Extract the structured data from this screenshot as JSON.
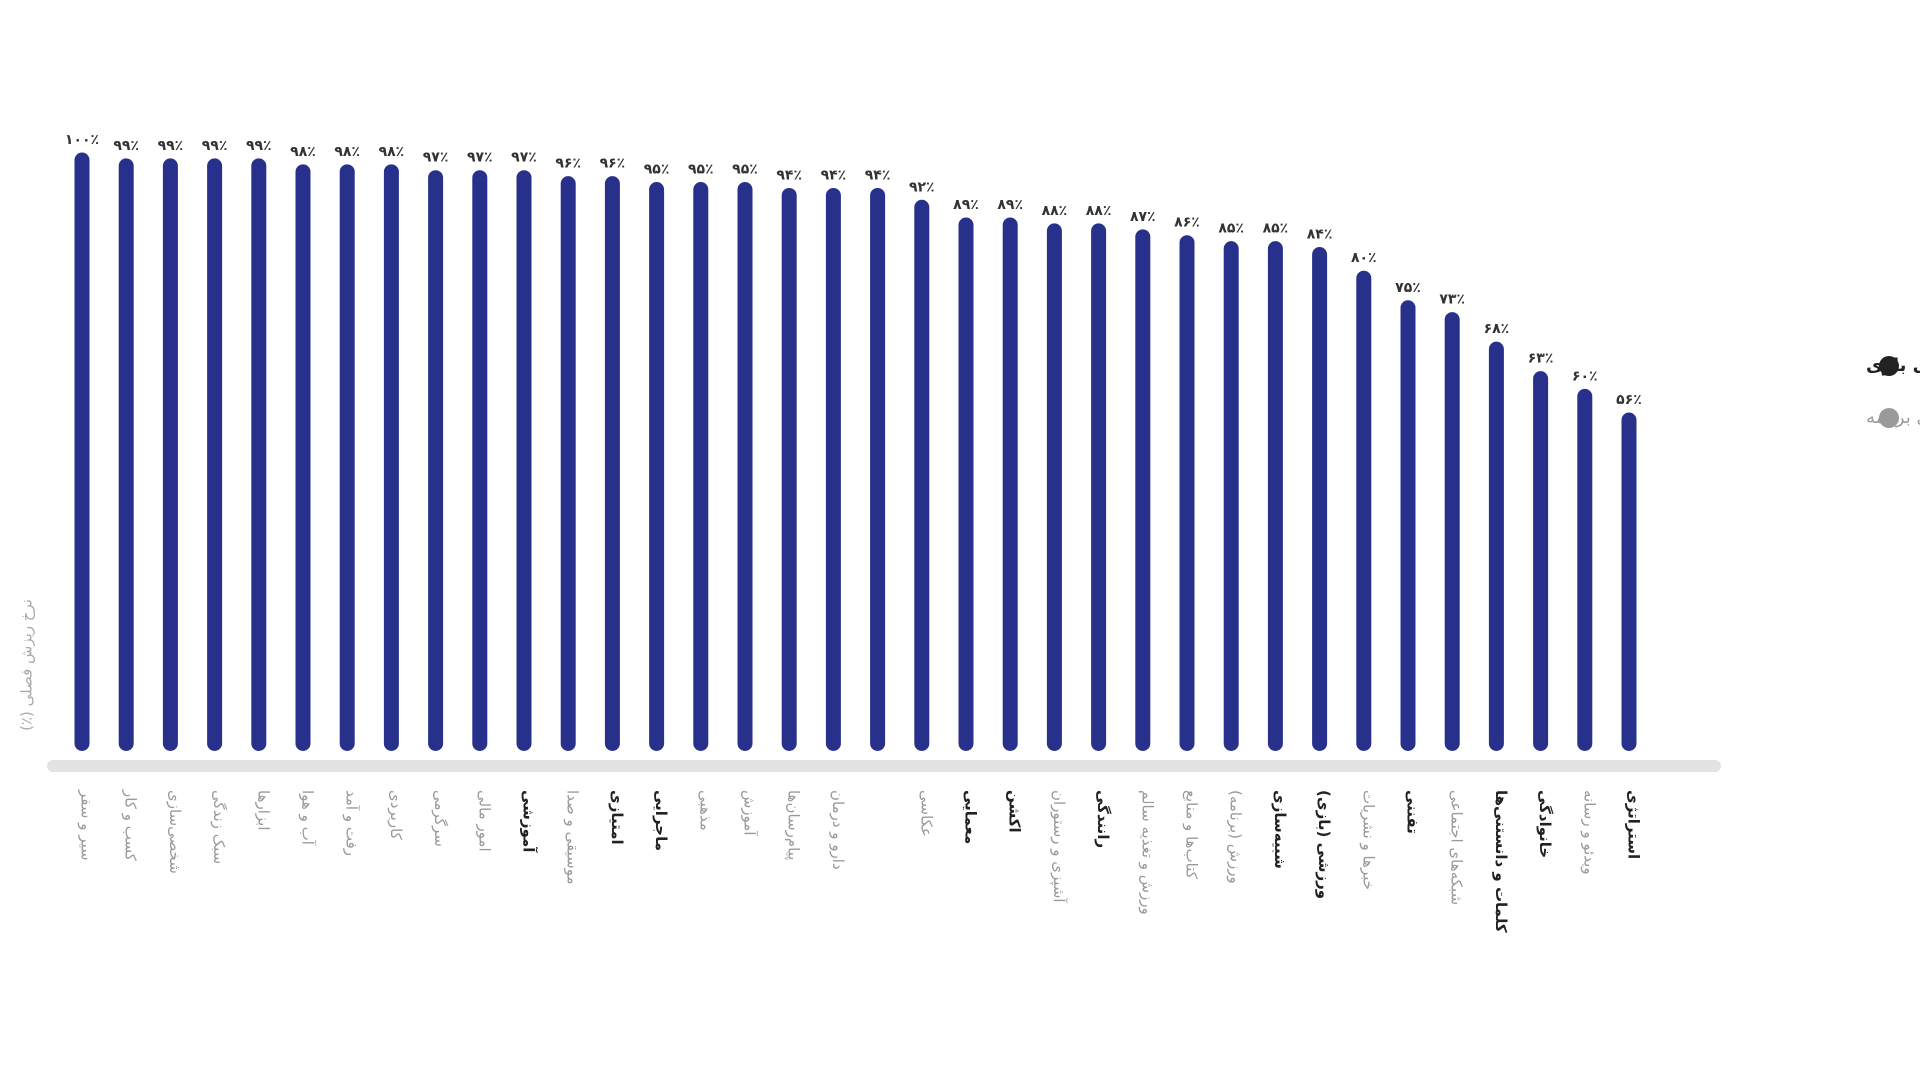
{
  "chart_data": {
    "type": "bar",
    "y_label": "نرخ ریزش فصلی (٪)",
    "categories": [
      "سیر و سفر",
      "کسب و کار",
      "شخصی‌سازی",
      "سبک زندگی",
      "ابزارها",
      "آب و هوا",
      "رفت و آمد",
      "کاربردی",
      "سرگرمی",
      "امور مالی",
      "آموزشی",
      "موسیقی و صدا",
      "امتیازی",
      "ماجرایی",
      "مذهبی",
      "آموزش",
      "پیام‌رسان‌ها",
      "دارو و درمان",
      null,
      "عکاسی",
      "معمایی",
      "اکشن",
      "آشپزی و رستوران",
      "رانندگی",
      "ورزش و تغذیه سالم",
      "کتاب‌ها و منابع",
      "ورزش (برنامه)",
      "شبیه‌سازی",
      "ورزشی (بازی)",
      "خبرها و نشریات",
      "تفننی",
      "شبکه‌های اجتماعی",
      "کلمات و دانستنی‌ها",
      "خانوادگی",
      "ویدئو و رسانه",
      "استراتژی"
    ],
    "values": [
      100,
      99,
      99,
      99,
      99,
      98,
      98,
      98,
      97,
      97,
      97,
      96,
      96,
      95,
      95,
      95,
      94,
      94,
      94,
      92,
      89,
      89,
      88,
      88,
      87,
      86,
      85,
      85,
      84,
      80,
      75,
      73,
      68,
      63,
      60,
      56
    ],
    "value_labels": [
      "۱۰۰٪",
      "۹۹٪",
      "۹۹٪",
      "۹۹٪",
      "۹۹٪",
      "۹۸٪",
      "۹۸٪",
      "۹۸٪",
      "۹۷٪",
      "۹۷٪",
      "۹۷٪",
      "۹۶٪",
      "۹۶٪",
      "۹۵٪",
      "۹۵٪",
      "۹۵٪",
      "۹۴٪",
      "۹۴٪",
      "۹۴٪",
      "۹۲٪",
      "۸۹٪",
      "۸۹٪",
      "۸۸٪",
      "۸۸٪",
      "۸۷٪",
      "۸۶٪",
      "۸۵٪",
      "۸۵٪",
      "۸۴٪",
      "۸۰٪",
      "۷۵٪",
      "۷۳٪",
      "۶۸٪",
      "۶۳٪",
      "۶۰٪",
      "۵۶٪"
    ],
    "color": "#27318b",
    "label_colors": [
      "#9a9a9a",
      "#9a9a9a",
      "#9a9a9a",
      "#9a9a9a",
      "#9a9a9a",
      "#9a9a9a",
      "#9a9a9a",
      "#9a9a9a",
      "#9a9a9a",
      "#9a9a9a",
      "#222222",
      "#9a9a9a",
      "#222222",
      "#222222",
      "#9a9a9a",
      "#9a9a9a",
      "#9a9a9a",
      "#9a9a9a",
      "#9a9a9a",
      "#9a9a9a",
      "#222222",
      "#222222",
      "#9a9a9a",
      "#222222",
      "#9a9a9a",
      "#9a9a9a",
      "#9a9a9a",
      "#222222",
      "#222222",
      "#9a9a9a",
      "#222222",
      "#9a9a9a",
      "#222222",
      "#222222",
      "#9a9a9a",
      "#222222"
    ],
    "legend": [
      {
        "name": "دسته‌های بازی",
        "color": "#222222"
      },
      {
        "name": "دسته‌های برنامه",
        "color": "#9a9a9a"
      }
    ],
    "ylim": [
      0,
      100
    ]
  }
}
